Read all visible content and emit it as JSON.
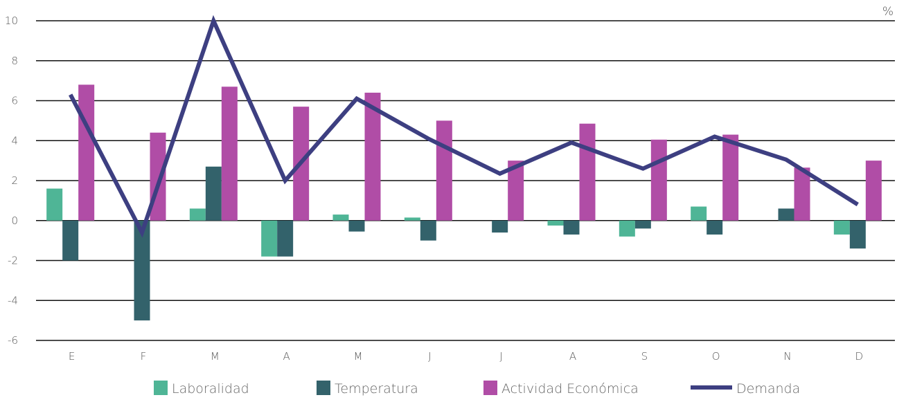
{
  "chart_data": {
    "type": "bar",
    "unit": "%",
    "categories": [
      "E",
      "F",
      "M",
      "A",
      "M",
      "J",
      "J",
      "A",
      "S",
      "O",
      "N",
      "D"
    ],
    "ylim": [
      -6,
      10
    ],
    "yticks": [
      "10",
      "8",
      "6",
      "4",
      "2",
      "0",
      "-2",
      "-4",
      "-6"
    ],
    "grid": true,
    "legend_position": "bottom",
    "series": [
      {
        "name": "Laboralidad",
        "kind": "bar",
        "color": "#4fb596",
        "values": [
          1.6,
          0,
          0.6,
          -1.8,
          0.3,
          0.15,
          0,
          -0.25,
          -0.8,
          0.7,
          0,
          -0.7
        ]
      },
      {
        "name": "Temperatura",
        "kind": "bar",
        "color": "#33626b",
        "values": [
          -2.0,
          -5.0,
          2.7,
          -1.8,
          -0.55,
          -1.0,
          -0.6,
          -0.7,
          -0.4,
          -0.7,
          0.6,
          -1.4
        ]
      },
      {
        "name": "Actividad Económica",
        "kind": "bar",
        "color": "#b04da6",
        "values": [
          6.8,
          4.4,
          6.7,
          5.7,
          6.4,
          5.0,
          3.0,
          4.85,
          4.05,
          4.3,
          2.65,
          3.0
        ]
      },
      {
        "name": "Demanda",
        "kind": "line",
        "color": "#3d3f81",
        "values": [
          6.3,
          -0.6,
          10.0,
          2.0,
          6.1,
          4.1,
          2.35,
          3.9,
          2.6,
          4.2,
          3.05,
          0.8
        ]
      }
    ]
  }
}
